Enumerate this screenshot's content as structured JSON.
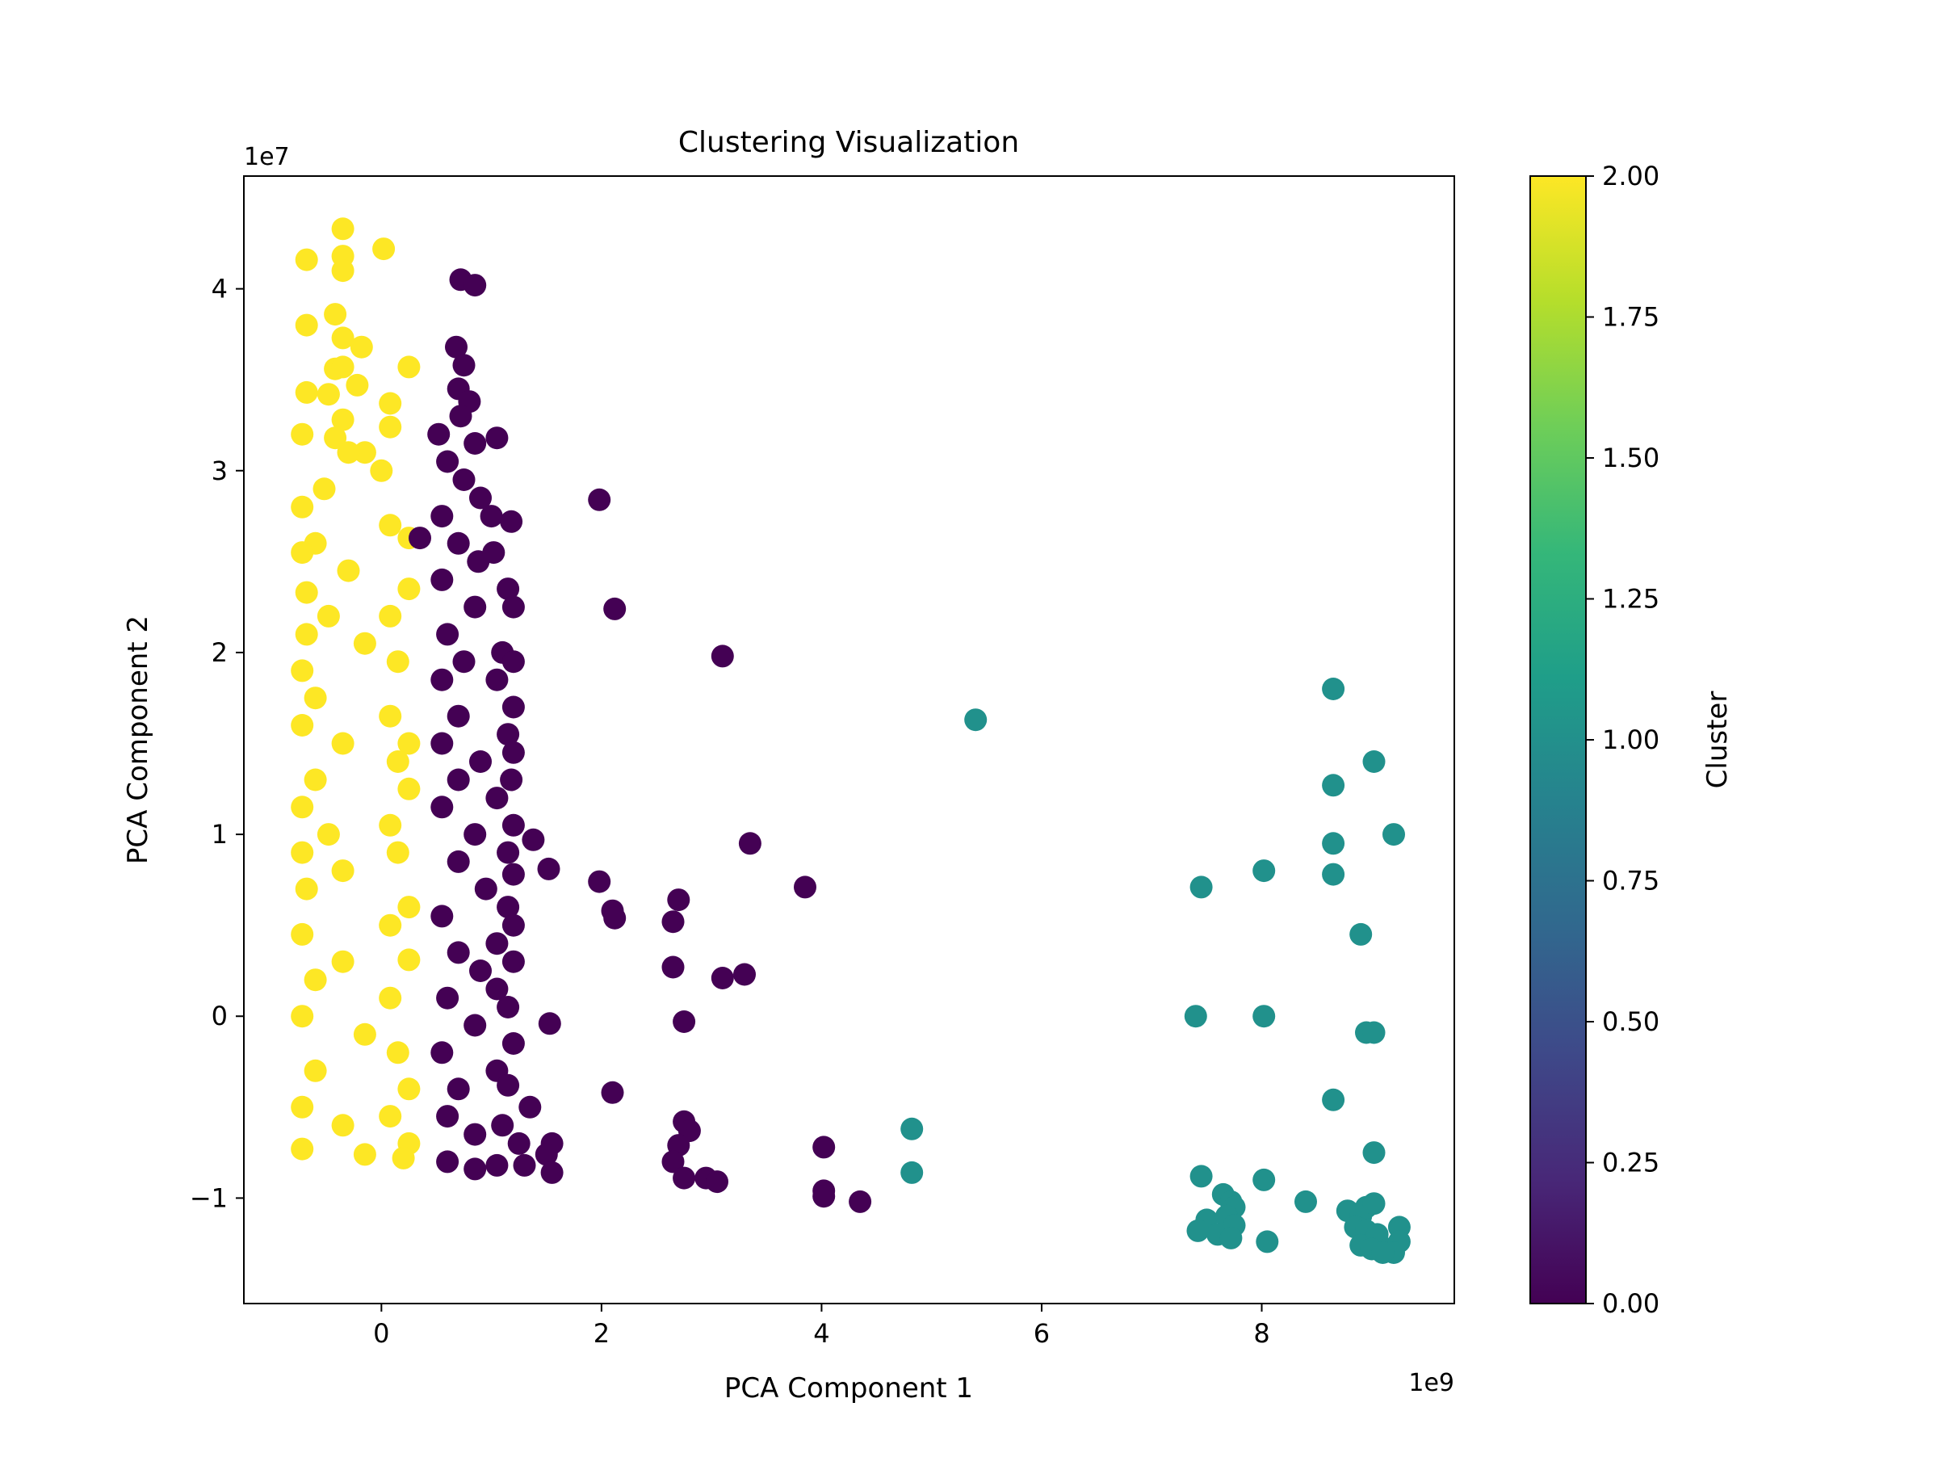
{
  "chart_data": {
    "type": "scatter",
    "title": "Clustering Visualization",
    "xlabel": "PCA Component 1",
    "ylabel": "PCA Component 2",
    "x_offset_label": "1e9",
    "y_offset_label": "1e7",
    "x_multiplier": 1000000000,
    "y_multiplier": 10000000,
    "xlim": [
      -1.25,
      9.75
    ],
    "ylim": [
      -1.58,
      4.62
    ],
    "x_ticks": [
      0,
      2,
      4,
      6,
      8
    ],
    "x_tick_labels": [
      "0",
      "2",
      "4",
      "6",
      "8"
    ],
    "y_ticks": [
      -1,
      0,
      1,
      2,
      3,
      4
    ],
    "y_tick_labels": [
      "−1",
      "0",
      "1",
      "2",
      "3",
      "4"
    ],
    "grid": false,
    "colorbar": {
      "label": "Cluster",
      "min": 0.0,
      "max": 2.0,
      "ticks": [
        0.0,
        0.25,
        0.5,
        0.75,
        1.0,
        1.25,
        1.5,
        1.75,
        2.0
      ],
      "tick_labels": [
        "0.00",
        "0.25",
        "0.50",
        "0.75",
        "1.00",
        "1.25",
        "1.50",
        "1.75",
        "2.00"
      ],
      "colormap": "viridis",
      "stops": [
        "#440154",
        "#482878",
        "#3e4989",
        "#31688e",
        "#26828e",
        "#1f9e89",
        "#35b779",
        "#6ece58",
        "#b5de2b",
        "#fde725"
      ]
    },
    "series": [
      {
        "cluster": 2,
        "color": "#fde725",
        "points": [
          [
            -0.35,
            4.33
          ],
          [
            0.02,
            4.22
          ],
          [
            -0.68,
            4.16
          ],
          [
            -0.35,
            4.18
          ],
          [
            -0.35,
            4.1
          ],
          [
            -0.42,
            3.86
          ],
          [
            -0.68,
            3.8
          ],
          [
            -0.35,
            3.73
          ],
          [
            -0.18,
            3.68
          ],
          [
            0.25,
            3.57
          ],
          [
            -0.42,
            3.56
          ],
          [
            -0.35,
            3.57
          ],
          [
            -0.22,
            3.47
          ],
          [
            -0.68,
            3.43
          ],
          [
            0.08,
            3.37
          ],
          [
            -0.48,
            3.42
          ],
          [
            -0.35,
            3.28
          ],
          [
            0.08,
            3.24
          ],
          [
            -0.72,
            3.2
          ],
          [
            -0.42,
            3.18
          ],
          [
            -0.15,
            3.1
          ],
          [
            -0.3,
            3.1
          ],
          [
            0.0,
            3.0
          ],
          [
            -0.52,
            2.9
          ],
          [
            -0.72,
            2.8
          ],
          [
            0.08,
            2.7
          ],
          [
            -0.6,
            2.6
          ],
          [
            0.25,
            2.63
          ],
          [
            -0.72,
            2.55
          ],
          [
            0.25,
            2.35
          ],
          [
            -0.3,
            2.45
          ],
          [
            -0.68,
            2.33
          ],
          [
            0.08,
            2.2
          ],
          [
            -0.48,
            2.2
          ],
          [
            -0.15,
            2.05
          ],
          [
            -0.68,
            2.1
          ],
          [
            0.15,
            1.95
          ],
          [
            -0.72,
            1.9
          ],
          [
            0.25,
            1.5
          ],
          [
            -0.6,
            1.75
          ],
          [
            0.08,
            1.65
          ],
          [
            -0.72,
            1.6
          ],
          [
            -0.35,
            1.5
          ],
          [
            0.15,
            1.4
          ],
          [
            -0.6,
            1.3
          ],
          [
            0.25,
            1.25
          ],
          [
            -0.72,
            1.15
          ],
          [
            0.08,
            1.05
          ],
          [
            -0.48,
            1.0
          ],
          [
            -0.72,
            0.9
          ],
          [
            0.15,
            0.9
          ],
          [
            -0.35,
            0.8
          ],
          [
            0.25,
            0.6
          ],
          [
            -0.68,
            0.7
          ],
          [
            0.08,
            0.5
          ],
          [
            -0.72,
            0.45
          ],
          [
            -0.35,
            0.3
          ],
          [
            0.25,
            0.31
          ],
          [
            -0.6,
            0.2
          ],
          [
            0.08,
            0.1
          ],
          [
            -0.72,
            0.0
          ],
          [
            -0.15,
            -0.1
          ],
          [
            0.15,
            -0.2
          ],
          [
            -0.6,
            -0.3
          ],
          [
            0.25,
            -0.4
          ],
          [
            -0.72,
            -0.5
          ],
          [
            0.08,
            -0.55
          ],
          [
            -0.35,
            -0.6
          ],
          [
            0.25,
            -0.7
          ],
          [
            -0.72,
            -0.73
          ],
          [
            -0.15,
            -0.76
          ],
          [
            0.2,
            -0.78
          ]
        ]
      },
      {
        "cluster": 0,
        "color": "#440154",
        "points": [
          [
            0.72,
            4.05
          ],
          [
            0.85,
            4.02
          ],
          [
            0.68,
            3.68
          ],
          [
            0.75,
            3.58
          ],
          [
            0.7,
            3.45
          ],
          [
            0.8,
            3.38
          ],
          [
            0.72,
            3.3
          ],
          [
            0.52,
            3.2
          ],
          [
            1.05,
            3.18
          ],
          [
            0.85,
            3.15
          ],
          [
            0.6,
            3.05
          ],
          [
            0.75,
            2.95
          ],
          [
            0.9,
            2.85
          ],
          [
            0.55,
            2.75
          ],
          [
            1.0,
            2.75
          ],
          [
            1.18,
            2.72
          ],
          [
            0.35,
            2.63
          ],
          [
            0.7,
            2.6
          ],
          [
            0.88,
            2.5
          ],
          [
            1.02,
            2.55
          ],
          [
            0.55,
            2.4
          ],
          [
            1.15,
            2.35
          ],
          [
            0.85,
            2.25
          ],
          [
            1.2,
            2.25
          ],
          [
            0.6,
            2.1
          ],
          [
            1.1,
            2.0
          ],
          [
            0.75,
            1.95
          ],
          [
            1.2,
            1.95
          ],
          [
            0.55,
            1.85
          ],
          [
            1.05,
            1.85
          ],
          [
            1.2,
            1.7
          ],
          [
            0.7,
            1.65
          ],
          [
            1.15,
            1.55
          ],
          [
            0.55,
            1.5
          ],
          [
            1.2,
            1.45
          ],
          [
            0.9,
            1.4
          ],
          [
            0.7,
            1.3
          ],
          [
            1.18,
            1.3
          ],
          [
            1.05,
            1.2
          ],
          [
            0.55,
            1.15
          ],
          [
            1.2,
            1.05
          ],
          [
            0.85,
            1.0
          ],
          [
            1.38,
            0.97
          ],
          [
            1.15,
            0.9
          ],
          [
            0.7,
            0.85
          ],
          [
            1.2,
            0.78
          ],
          [
            0.95,
            0.7
          ],
          [
            1.15,
            0.6
          ],
          [
            0.55,
            0.55
          ],
          [
            1.2,
            0.5
          ],
          [
            1.05,
            0.4
          ],
          [
            0.7,
            0.35
          ],
          [
            1.2,
            0.3
          ],
          [
            0.9,
            0.25
          ],
          [
            1.05,
            0.15
          ],
          [
            0.6,
            0.1
          ],
          [
            1.15,
            0.05
          ],
          [
            0.85,
            -0.05
          ],
          [
            1.2,
            -0.15
          ],
          [
            0.55,
            -0.2
          ],
          [
            1.05,
            -0.3
          ],
          [
            1.15,
            -0.38
          ],
          [
            0.7,
            -0.4
          ],
          [
            1.35,
            -0.5
          ],
          [
            0.6,
            -0.55
          ],
          [
            1.1,
            -0.6
          ],
          [
            0.85,
            -0.65
          ],
          [
            1.25,
            -0.7
          ],
          [
            1.55,
            -0.7
          ],
          [
            1.5,
            -0.76
          ],
          [
            0.6,
            -0.8
          ],
          [
            1.05,
            -0.82
          ],
          [
            1.3,
            -0.82
          ],
          [
            1.55,
            -0.86
          ],
          [
            0.85,
            -0.84
          ],
          [
            1.52,
            0.81
          ],
          [
            1.53,
            -0.04
          ],
          [
            1.98,
            2.84
          ],
          [
            2.12,
            2.24
          ],
          [
            3.1,
            1.98
          ],
          [
            3.35,
            0.95
          ],
          [
            3.85,
            0.71
          ],
          [
            1.98,
            0.74
          ],
          [
            2.1,
            0.58
          ],
          [
            2.12,
            0.54
          ],
          [
            2.7,
            0.64
          ],
          [
            2.65,
            0.52
          ],
          [
            2.65,
            0.27
          ],
          [
            2.75,
            -0.03
          ],
          [
            3.1,
            0.21
          ],
          [
            3.3,
            0.23
          ],
          [
            2.1,
            -0.42
          ],
          [
            2.75,
            -0.58
          ],
          [
            2.8,
            -0.63
          ],
          [
            2.7,
            -0.71
          ],
          [
            2.65,
            -0.8
          ],
          [
            2.75,
            -0.89
          ],
          [
            2.95,
            -0.89
          ],
          [
            3.05,
            -0.91
          ],
          [
            4.02,
            -0.72
          ],
          [
            4.02,
            -0.96
          ],
          [
            4.02,
            -0.99
          ],
          [
            4.35,
            -1.02
          ]
        ]
      },
      {
        "cluster": 1,
        "color": "#21918c",
        "points": [
          [
            5.4,
            1.63
          ],
          [
            4.82,
            -0.62
          ],
          [
            4.82,
            -0.86
          ],
          [
            8.65,
            1.8
          ],
          [
            9.02,
            1.4
          ],
          [
            8.65,
            1.27
          ],
          [
            9.2,
            1.0
          ],
          [
            8.65,
            0.95
          ],
          [
            8.02,
            0.8
          ],
          [
            8.65,
            0.78
          ],
          [
            7.45,
            0.71
          ],
          [
            8.9,
            0.45
          ],
          [
            7.4,
            0.0
          ],
          [
            8.02,
            0.0
          ],
          [
            8.95,
            -0.09
          ],
          [
            9.02,
            -0.09
          ],
          [
            8.65,
            -0.46
          ],
          [
            9.02,
            -0.75
          ],
          [
            7.45,
            -0.88
          ],
          [
            8.02,
            -0.9
          ],
          [
            8.4,
            -1.02
          ],
          [
            7.65,
            -0.98
          ],
          [
            7.72,
            -1.02
          ],
          [
            7.75,
            -1.05
          ],
          [
            7.5,
            -1.12
          ],
          [
            7.68,
            -1.1
          ],
          [
            7.75,
            -1.15
          ],
          [
            7.42,
            -1.18
          ],
          [
            7.6,
            -1.2
          ],
          [
            7.72,
            -1.22
          ],
          [
            8.05,
            -1.24
          ],
          [
            8.78,
            -1.07
          ],
          [
            8.9,
            -1.1
          ],
          [
            8.95,
            -1.05
          ],
          [
            9.02,
            -1.03
          ],
          [
            8.85,
            -1.16
          ],
          [
            8.95,
            -1.18
          ],
          [
            9.05,
            -1.2
          ],
          [
            9.25,
            -1.16
          ],
          [
            8.9,
            -1.26
          ],
          [
            9.0,
            -1.28
          ],
          [
            9.15,
            -1.28
          ],
          [
            9.25,
            -1.24
          ],
          [
            9.2,
            -1.3
          ],
          [
            9.1,
            -1.3
          ]
        ]
      }
    ]
  }
}
